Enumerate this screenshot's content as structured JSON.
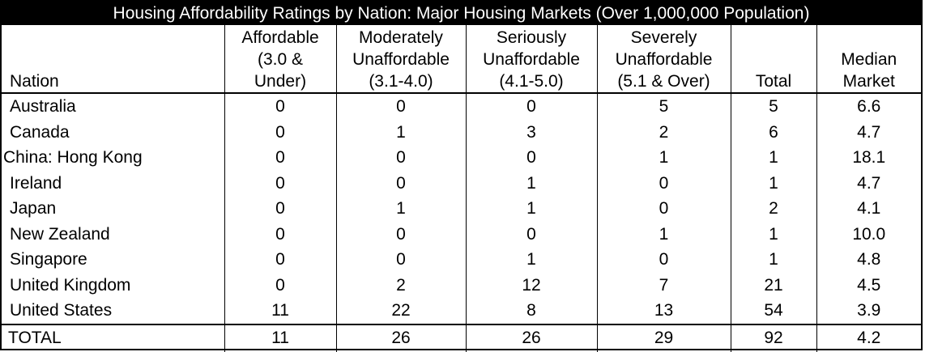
{
  "chart_data": {
    "type": "table",
    "title": "Housing Affordability Ratings by Nation: Major Housing Markets (Over 1,000,000 Population)",
    "columns": [
      "Nation",
      "Affordable\n(3.0 &\nUnder)",
      "Moderately\nUnaffordable\n(3.1-4.0)",
      "Seriously\nUnaffordable\n(4.1-5.0)",
      "Severely\nUnaffordable\n(5.1 & Over)",
      "Total",
      "Median\nMarket"
    ],
    "rows": [
      [
        "Australia",
        "0",
        "0",
        "0",
        "5",
        "5",
        "6.6"
      ],
      [
        "Canada",
        "0",
        "1",
        "3",
        "2",
        "6",
        "4.7"
      ],
      [
        "China: Hong Kong",
        "0",
        "0",
        "0",
        "1",
        "1",
        "18.1"
      ],
      [
        "Ireland",
        "0",
        "0",
        "1",
        "0",
        "1",
        "4.7"
      ],
      [
        "Japan",
        "0",
        "1",
        "1",
        "0",
        "2",
        "4.1"
      ],
      [
        "New Zealand",
        "0",
        "0",
        "0",
        "1",
        "1",
        "10.0"
      ],
      [
        "Singapore",
        "0",
        "0",
        "1",
        "0",
        "1",
        "4.8"
      ],
      [
        "United Kingdom",
        "0",
        "2",
        "12",
        "7",
        "21",
        "4.5"
      ],
      [
        "United States",
        "11",
        "22",
        "8",
        "13",
        "54",
        "3.9"
      ]
    ],
    "total_row": [
      "TOTAL",
      "11",
      "26",
      "26",
      "29",
      "92",
      "4.2"
    ]
  },
  "colors": {
    "title_bg": "#000000",
    "title_text": "#ffffff",
    "rules": "#000000"
  }
}
